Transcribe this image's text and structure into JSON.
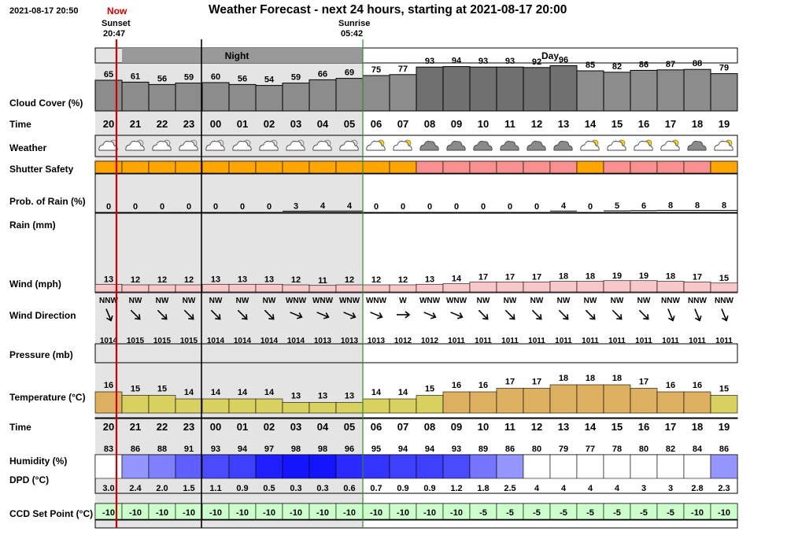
{
  "header": {
    "datetime": "2021-08-17 20:50",
    "title": "Weather Forecast - next 24 hours, starting at 2021-08-17 20:00",
    "now_label": "Now",
    "sunset_label": "Sunset",
    "sunset_time": "20:47",
    "sunrise_label": "Sunrise",
    "sunrise_time": "05:42",
    "night_label": "Night",
    "day_label": "Day"
  },
  "row_labels": {
    "cloud": "Cloud Cover (%)",
    "time": "Time",
    "weather": "Weather",
    "shutter": "Shutter Safety",
    "rain_prob": "Prob. of Rain (%)",
    "rain": "Rain (mm)",
    "wind": "Wind (mph)",
    "wind_dir": "Wind Direction",
    "pressure": "Pressure (mb)",
    "temperature": "Temperature (°C)",
    "time2": "Time",
    "humidity": "Humidity (%)",
    "dpd": "DPD (°C)",
    "ccd": "CCD Set Point (°C)"
  },
  "colors": {
    "night_shade": "#e4e4e4",
    "now_line": "#cc0000",
    "sunrise_line": "#2e8b2e",
    "cloud_light": "#8c8c8c",
    "cloud_dark": "#707070",
    "shutter_safe": "#ffa500",
    "shutter_unsafe": "#f89090",
    "wind_fill": "#f8c8c8",
    "temp_cool": "#d8d060",
    "temp_warm": "#dcb060",
    "ccd_fill": "#ccffcc"
  },
  "chart_data": {
    "type": "table",
    "hours": [
      "20",
      "21",
      "22",
      "23",
      "00",
      "01",
      "02",
      "03",
      "04",
      "05",
      "06",
      "07",
      "08",
      "09",
      "10",
      "11",
      "12",
      "13",
      "14",
      "15",
      "16",
      "17",
      "18",
      "19"
    ],
    "is_night": [
      true,
      true,
      true,
      true,
      true,
      true,
      true,
      true,
      true,
      true,
      false,
      false,
      false,
      false,
      false,
      false,
      false,
      false,
      false,
      false,
      false,
      false,
      false,
      false
    ],
    "cloud_cover": [
      65,
      61,
      56,
      59,
      60,
      56,
      54,
      59,
      66,
      69,
      75,
      77,
      93,
      94,
      93,
      93,
      92,
      96,
      85,
      82,
      86,
      87,
      88,
      79
    ],
    "weather_icons": [
      "partly-cloudy-night-icon",
      "partly-cloudy-night-icon",
      "partly-cloudy-night-icon",
      "partly-cloudy-night-icon",
      "partly-cloudy-night-icon",
      "partly-cloudy-night-icon",
      "partly-cloudy-night-icon",
      "partly-cloudy-night-icon",
      "partly-cloudy-night-icon",
      "partly-cloudy-night-icon",
      "partly-cloudy-day-icon",
      "partly-cloudy-day-icon",
      "dark-cloud-icon",
      "dark-cloud-icon",
      "dark-cloud-icon",
      "dark-cloud-icon",
      "dark-cloud-icon",
      "dark-cloud-icon",
      "partly-cloudy-day-icon",
      "partly-cloudy-day-icon",
      "partly-cloudy-day-icon",
      "partly-cloudy-day-icon",
      "dark-cloud-icon",
      "partly-cloudy-day-icon"
    ],
    "shutter_safe": [
      true,
      true,
      true,
      true,
      true,
      true,
      true,
      true,
      true,
      true,
      true,
      true,
      false,
      false,
      false,
      false,
      false,
      false,
      true,
      false,
      false,
      false,
      false,
      true
    ],
    "rain_probability": [
      0,
      0,
      0,
      0,
      0,
      0,
      0,
      3,
      4,
      4,
      0,
      0,
      0,
      0,
      0,
      0,
      0,
      4,
      0,
      5,
      6,
      8,
      8,
      8
    ],
    "wind_speed": [
      13,
      12,
      12,
      12,
      13,
      13,
      13,
      12,
      11,
      12,
      12,
      12,
      13,
      14,
      17,
      17,
      17,
      18,
      18,
      19,
      19,
      18,
      17,
      15
    ],
    "wind_direction": [
      "NNW",
      "NW",
      "NW",
      "NW",
      "NW",
      "NW",
      "NW",
      "WNW",
      "WNW",
      "WNW",
      "WNW",
      "W",
      "WNW",
      "WNW",
      "NW",
      "NW",
      "NW",
      "NW",
      "NW",
      "NW",
      "NW",
      "NNW",
      "NNW",
      "NNW"
    ],
    "pressure": [
      1014,
      1015,
      1015,
      1015,
      1014,
      1014,
      1014,
      1014,
      1013,
      1013,
      1013,
      1012,
      1012,
      1011,
      1011,
      1011,
      1011,
      1011,
      1011,
      1011,
      1011,
      1011,
      1011,
      1011
    ],
    "temperature": [
      16,
      15,
      15,
      14,
      14,
      14,
      14,
      13,
      13,
      13,
      14,
      14,
      15,
      16,
      16,
      17,
      17,
      18,
      18,
      18,
      17,
      16,
      16,
      15
    ],
    "humidity": [
      83,
      86,
      88,
      91,
      93,
      94,
      97,
      98,
      98,
      96,
      95,
      94,
      94,
      93,
      89,
      86,
      80,
      79,
      77,
      78,
      80,
      82,
      84,
      86
    ],
    "dpd": [
      "3.0",
      "2.4",
      "2.0",
      "1.5",
      "1.1",
      "0.9",
      "0.5",
      "0.3",
      "0.3",
      "0.6",
      "0.7",
      "0.9",
      "0.9",
      "1.2",
      "1.8",
      "2.5",
      "4",
      "4",
      "4",
      "4",
      "3",
      "3",
      "2.8",
      "2.3"
    ],
    "ccd_set_point": [
      -10,
      -10,
      -10,
      -10,
      -10,
      -10,
      -10,
      -10,
      -10,
      -10,
      -10,
      -10,
      -10,
      -10,
      -5,
      -5,
      -5,
      -5,
      -5,
      -5,
      -5,
      -5,
      -10,
      -10
    ]
  }
}
